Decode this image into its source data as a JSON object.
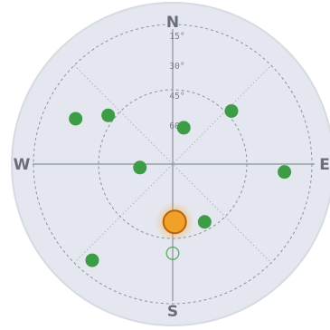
{
  "skyplot": {
    "cardinals": {
      "north": "N",
      "south": "S",
      "west": "W",
      "east": "E"
    },
    "elevation_rings": [
      "15°",
      "30°",
      "45°",
      "60°"
    ],
    "colors": {
      "background": "#e4e7ef",
      "satellite_tracked": "#3d9c46",
      "satellite_untracked": "#3d9c46",
      "sun": "#f2a128"
    },
    "sun": {
      "azimuth": 178,
      "elevation": 55
    },
    "satellites": [
      {
        "id": "sat-1",
        "azimuth": 17,
        "elevation": 67,
        "tracked": true
      },
      {
        "id": "sat-2",
        "azimuth": 307,
        "elevation": 41,
        "tracked": true
      },
      {
        "id": "sat-3",
        "azimuth": 295,
        "elevation": 25,
        "tracked": true
      },
      {
        "id": "sat-4",
        "azimuth": 48,
        "elevation": 42,
        "tracked": true
      },
      {
        "id": "sat-5",
        "azimuth": 264,
        "elevation": 70,
        "tracked": true
      },
      {
        "id": "sat-6",
        "azimuth": 94,
        "elevation": 22,
        "tracked": true
      },
      {
        "id": "sat-7",
        "azimuth": 151,
        "elevation": 50,
        "tracked": true
      },
      {
        "id": "sat-8",
        "azimuth": 220,
        "elevation": 14,
        "tracked": true
      },
      {
        "id": "sat-9",
        "azimuth": 180,
        "elevation": 36,
        "tracked": false
      }
    ]
  }
}
